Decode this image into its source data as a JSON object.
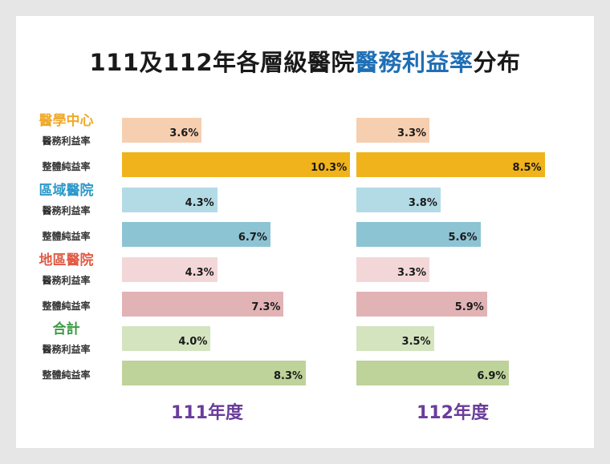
{
  "title": {
    "part1": "111及112年各層級醫院",
    "highlight": "醫務利益率",
    "part2": "分布"
  },
  "chart_data": {
    "type": "bar",
    "orientation": "horizontal",
    "title": "111及112年各層級醫院醫務利益率分布",
    "panels": [
      "111年度",
      "112年度"
    ],
    "groups": [
      {
        "name": "醫學中心",
        "color": "#f1a92a",
        "rows": [
          {
            "label": "醫務利益率",
            "color": "#f6cfb0",
            "values": [
              3.6,
              3.3
            ],
            "labels": [
              "3.6%",
              "3.3%"
            ]
          },
          {
            "label": "整體純益率",
            "color": "#f0b31c",
            "values": [
              10.3,
              8.5
            ],
            "labels": [
              "10.3%",
              "8.5%"
            ]
          }
        ]
      },
      {
        "name": "區域醫院",
        "color": "#2b98c8",
        "rows": [
          {
            "label": "醫務利益率",
            "color": "#b3dbe6",
            "values": [
              4.3,
              3.8
            ],
            "labels": [
              "4.3%",
              "3.8%"
            ]
          },
          {
            "label": "整體純益率",
            "color": "#8dc4d4",
            "values": [
              6.7,
              5.6
            ],
            "labels": [
              "6.7%",
              "5.6%"
            ]
          }
        ]
      },
      {
        "name": "地區醫院",
        "color": "#e05a45",
        "rows": [
          {
            "label": "醫務利益率",
            "color": "#f3d7d8",
            "values": [
              4.3,
              3.3
            ],
            "labels": [
              "4.3%",
              "3.3%"
            ]
          },
          {
            "label": "整體純益率",
            "color": "#e2b3b5",
            "values": [
              7.3,
              5.9
            ],
            "labels": [
              "7.3%",
              "5.9%"
            ]
          }
        ]
      },
      {
        "name": "合計",
        "color": "#3d9a45",
        "rows": [
          {
            "label": "醫務利益率",
            "color": "#d4e4bf",
            "values": [
              4.0,
              3.5
            ],
            "labels": [
              "4.0%",
              "3.5%"
            ]
          },
          {
            "label": "整體純益率",
            "color": "#bed399",
            "values": [
              8.3,
              6.9
            ],
            "labels": [
              "8.3%",
              "6.9%"
            ]
          }
        ]
      }
    ]
  }
}
